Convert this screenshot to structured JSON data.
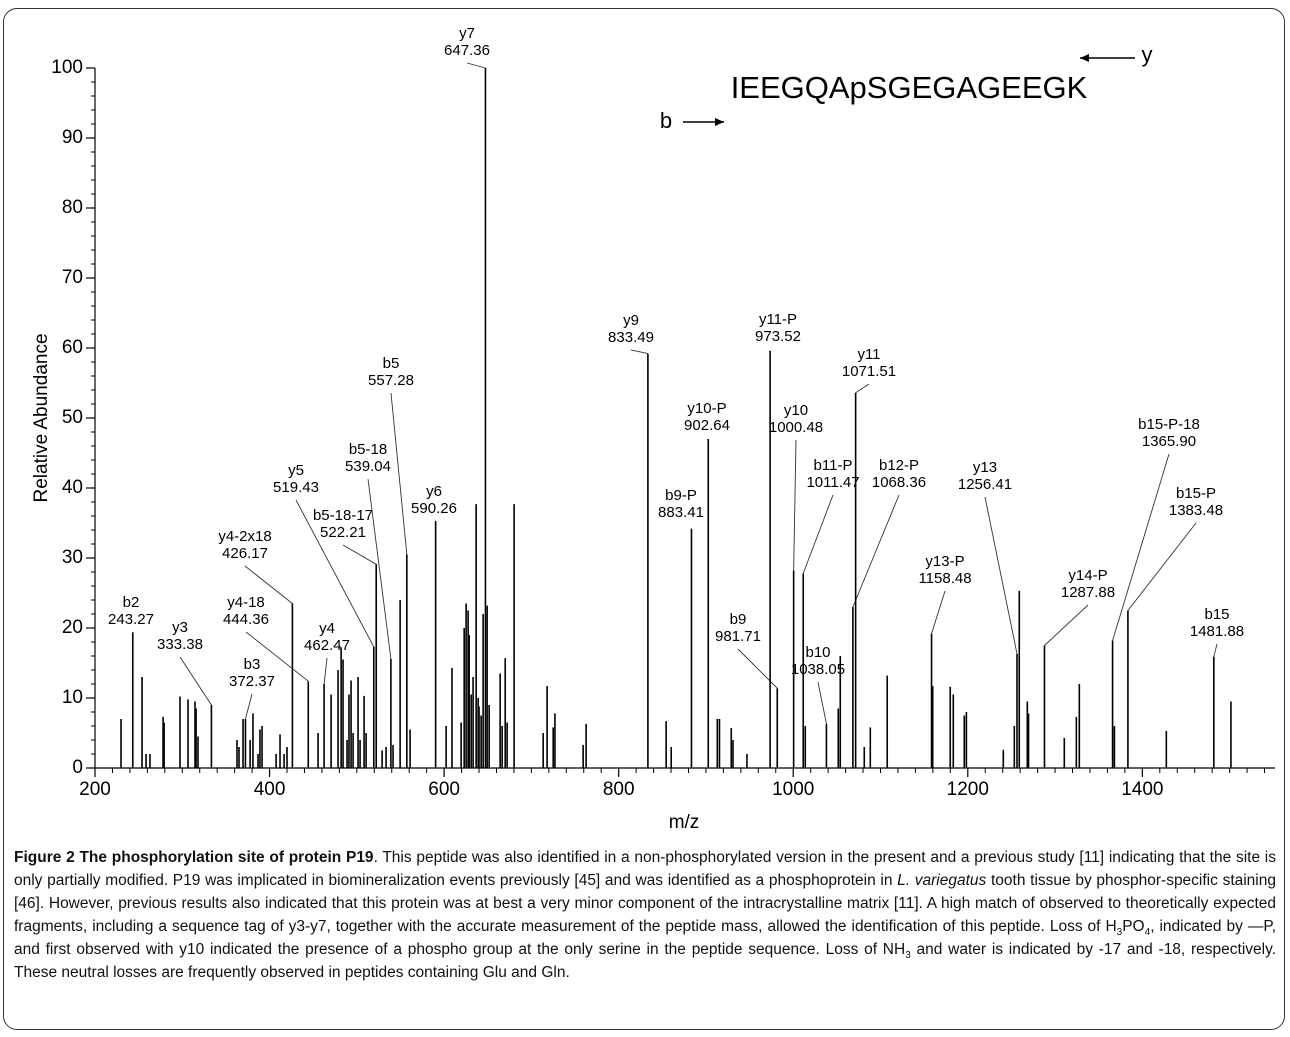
{
  "chart_data": {
    "type": "spectrum",
    "sequence": "IEEGQApSGEGAGEEGK",
    "b_label": "b",
    "y_label": "y",
    "xlabel": "m/z",
    "ylabel": "Relative Abundance",
    "xlim": [
      200,
      1552
    ],
    "ylim": [
      0,
      100
    ],
    "xticks": [
      200,
      400,
      600,
      800,
      1000,
      1200,
      1400
    ],
    "yticks": [
      0,
      10,
      20,
      30,
      40,
      50,
      60,
      70,
      80,
      90,
      100
    ],
    "color": "#000000",
    "peaks": {
      "x": [
        229.8,
        253.9,
        258.5,
        263,
        278,
        279.2,
        297.4,
        306.6,
        314.6,
        315.8,
        318,
        362.7,
        365,
        369.6,
        377.7,
        381,
        386.8,
        389,
        391.4,
        407.5,
        412,
        416.6,
        420,
        455.6,
        470.5,
        478.5,
        482,
        484.2,
        488.8,
        491,
        493.4,
        495.7,
        501.4,
        503.7,
        508.3,
        510.6,
        529,
        533.5,
        541.5,
        549.6,
        561,
        602.3,
        609,
        619.5,
        623,
        625.2,
        627.5,
        628.7,
        631,
        633.2,
        636.7,
        639,
        640,
        642.4,
        644.7,
        649.3,
        651.6,
        664.2,
        666.5,
        670,
        672.2,
        680.2,
        713.5,
        718,
        725,
        727,
        759.3,
        762.7,
        854.4,
        860.2,
        913,
        915.5,
        929,
        931,
        947,
        1013.8,
        1051.6,
        1053.9,
        1081.4,
        1088.3,
        1107.7,
        1159.8,
        1179.9,
        1183.4,
        1196,
        1198.4,
        1240.7,
        1253.3,
        1259,
        1268.2,
        1269.6,
        1310.6,
        1324.4,
        1327.8,
        1368,
        1427.5,
        1501.5
      ],
      "values": [
        7,
        13,
        2,
        2,
        7.3,
        6.5,
        10.2,
        9.8,
        9.5,
        8.5,
        4.5,
        4,
        3,
        7,
        4,
        7.8,
        2,
        5.5,
        6,
        2,
        4.8,
        2,
        3,
        5,
        10.5,
        14,
        17.2,
        15.5,
        4,
        10.5,
        12.5,
        5,
        13,
        4,
        10.3,
        5,
        2.5,
        3,
        3.3,
        24,
        5.5,
        6,
        14.3,
        6.5,
        20,
        23.5,
        22.5,
        19,
        10.5,
        13,
        37.7,
        10,
        8.8,
        7.5,
        22,
        23.2,
        9,
        13.5,
        6,
        15.7,
        6.5,
        37.7,
        5,
        11.7,
        5.8,
        7.8,
        3.3,
        6.3,
        6.7,
        3,
        7,
        7,
        5.7,
        4,
        2,
        6,
        8.5,
        16,
        3,
        5.8,
        13.2,
        11.7,
        11.6,
        10.5,
        7.5,
        8,
        2.6,
        6,
        25.3,
        9.5,
        7.8,
        4.3,
        7.3,
        12,
        6,
        5.3,
        9.5
      ]
    },
    "annotations": [
      {
        "ion": "b2",
        "mz": 243.27,
        "height": 19.4
      },
      {
        "ion": "y3",
        "mz": 333.38,
        "height": 9
      },
      {
        "ion": "b3",
        "mz": 372.37,
        "height": 7
      },
      {
        "ion": "y4-2x18",
        "mz": 426.17,
        "height": 23.5
      },
      {
        "ion": "y4-18",
        "mz": 444.36,
        "height": 12.4
      },
      {
        "ion": "y4",
        "mz": 462.47,
        "height": 12
      },
      {
        "ion": "y5",
        "mz": 519.43,
        "height": 17.3
      },
      {
        "ion": "b5-18-17",
        "mz": 522.21,
        "height": 29.1
      },
      {
        "ion": "b5-18",
        "mz": 539.04,
        "height": 15.6
      },
      {
        "ion": "b5",
        "mz": 557.28,
        "height": 30.5
      },
      {
        "ion": "y6",
        "mz": 590.26,
        "height": 35.3
      },
      {
        "ion": "y7",
        "mz": 647.36,
        "height": 100
      },
      {
        "ion": "y9",
        "mz": 833.49,
        "height": 59.2
      },
      {
        "ion": "b9-P",
        "mz": 883.41,
        "height": 34.2
      },
      {
        "ion": "y10-P",
        "mz": 902.64,
        "height": 47
      },
      {
        "ion": "b9",
        "mz": 981.71,
        "height": 11.4
      },
      {
        "ion": "y11-P",
        "mz": 973.52,
        "height": 59.6
      },
      {
        "ion": "y10",
        "mz": 1000.48,
        "height": 28.2
      },
      {
        "ion": "b11-P",
        "mz": 1011.47,
        "height": 27.8
      },
      {
        "ion": "b10",
        "mz": 1038.05,
        "height": 6.3
      },
      {
        "ion": "b12-P",
        "mz": 1068.36,
        "height": 23
      },
      {
        "ion": "y11",
        "mz": 1071.51,
        "height": 53.6
      },
      {
        "ion": "y13-P",
        "mz": 1158.48,
        "height": 19.2
      },
      {
        "ion": "y13",
        "mz": 1256.41,
        "height": 16.3
      },
      {
        "ion": "y14-P",
        "mz": 1287.88,
        "height": 17.5
      },
      {
        "ion": "b15-P-18",
        "mz": {
          "value": 1365.9,
          "label": "1365.90"
        },
        "height": 18.2
      },
      {
        "ion": "b15-P",
        "mz": 1383.48,
        "height": 22.5
      },
      {
        "ion": "b15",
        "mz": 1481.88,
        "height": 15.9
      }
    ]
  },
  "caption": [
    "Figure 2 The phosphorylation site of protein P19",
    ". This peptide was also identified in a non-phosphorylated version in the present and a previous study [11] indicating that the site is only partially modified. P19 was implicated in biomineralization events previously [45] and was identified as a phosphoprotein in ",
    "L. variegatus",
    " tooth tissue by phosphor-specific staining [46]. However, previous results also indicated that this protein was at best a very minor component of the intracrystalline matrix [11]. A high match of observed to theoretically expected fragments, including a sequence tag of y3-y7, together with the accurate measurement of the peptide mass, allowed the identification of this peptide. Loss of H",
    "3",
    "PO",
    "4",
    ", indicated by —P, and first observed with y10 indicated the presence of a phospho group at the only serine in the peptide sequence. Loss of NH",
    "3",
    " and water is indicated by -17 and -18, respectively. These neutral losses are frequently observed in peptides containing Glu and Gln."
  ]
}
